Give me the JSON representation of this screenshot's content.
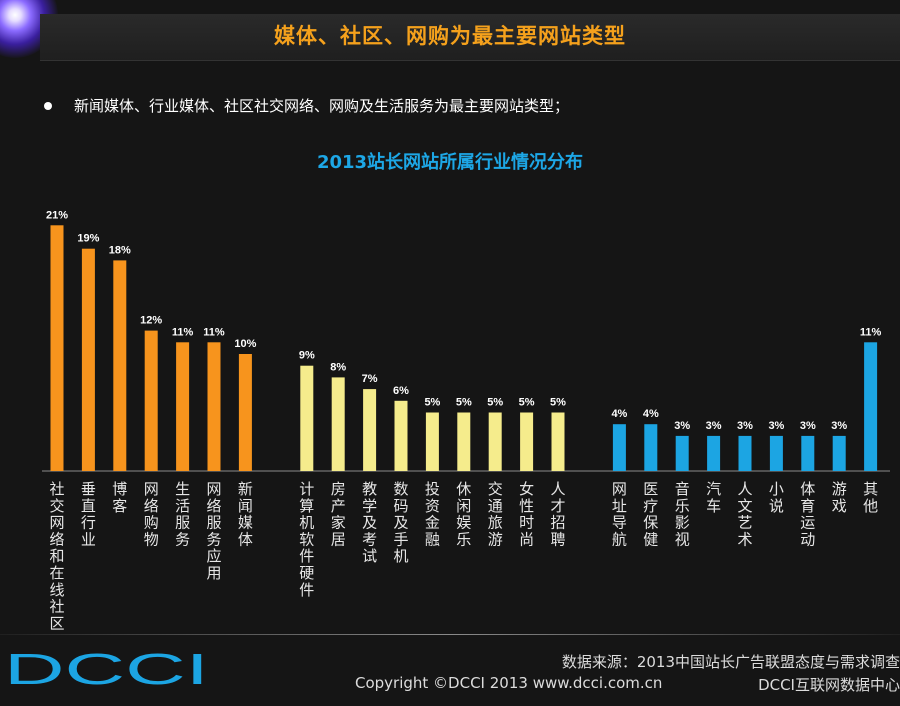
{
  "header": {
    "title": "媒体、社区、网购为最主要网站类型"
  },
  "bullet": {
    "text": "新闻媒体、行业媒体、社区社交网络、网购及生活服务为最主要网站类型；"
  },
  "chart_data": {
    "type": "bar",
    "title": "2013站长网站所属行业情况分布",
    "categories": [
      "社交网络和在线社区",
      "垂直行业",
      "博客",
      "网络购物",
      "生活服务",
      "网络服务应用",
      "新闻媒体",
      "计算机软件硬件",
      "房产家居",
      "教学及考试",
      "数码及手机",
      "投资金融",
      "休闲娱乐",
      "交通旅游",
      "女性时尚",
      "人才招聘",
      "网址导航",
      "医疗保健",
      "音乐影视",
      "汽车",
      "人文艺术",
      "小说",
      "体育运动",
      "游戏",
      "其他"
    ],
    "values": [
      21,
      19,
      18,
      12,
      11,
      11,
      10,
      9,
      8,
      7,
      6,
      5,
      5,
      5,
      5,
      5,
      4,
      4,
      3,
      3,
      3,
      3,
      3,
      3,
      11
    ],
    "data_labels": [
      "21%",
      "19%",
      "18%",
      "12%",
      "11%",
      "11%",
      "10%",
      "9%",
      "8%",
      "7%",
      "6%",
      "5%",
      "5%",
      "5%",
      "5%",
      "5%",
      "4%",
      "4%",
      "3%",
      "3%",
      "3%",
      "3%",
      "3%",
      "3%",
      "11%"
    ],
    "groups": [
      0,
      0,
      0,
      0,
      0,
      0,
      0,
      1,
      1,
      1,
      1,
      1,
      1,
      1,
      1,
      1,
      2,
      2,
      2,
      2,
      2,
      2,
      2,
      2,
      2
    ],
    "group_colors": [
      "#f7941d",
      "#f5ec8c",
      "#1ca5e3"
    ],
    "ylim": [
      0,
      22
    ],
    "unit": "%",
    "grid": false
  },
  "footer": {
    "logo_text": "DCCI",
    "source": "数据来源：2013中国站长广告联盟态度与需求调查",
    "copyright": "Copyright ©DCCI 2013 www.dcci.com.cn",
    "center": "DCCI互联网数据中心"
  },
  "colors": {
    "title_orange": "#f5a11c",
    "chart_title_blue": "#1da7e6",
    "logo_blue": "#1ca5e3",
    "background": "#151515"
  }
}
